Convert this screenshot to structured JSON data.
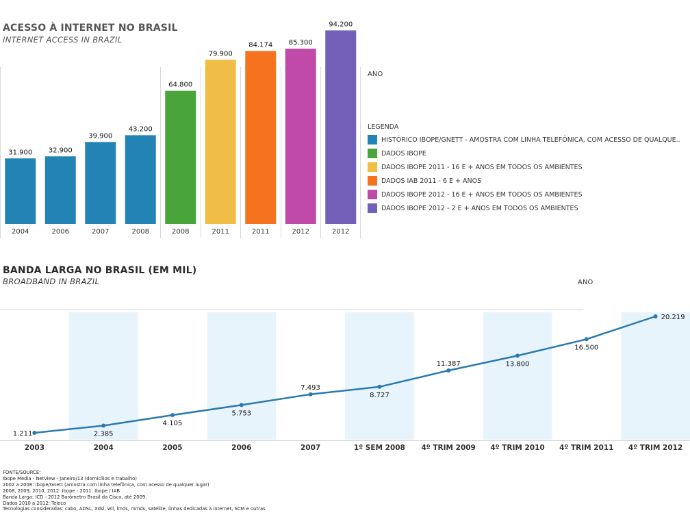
{
  "chart_data": [
    {
      "type": "bar",
      "title": "ACESSO À INTERNET NO BRASIL",
      "subtitle": "INTERNET ACCESS IN BRAZIL",
      "axis_title": "ANO",
      "categories": [
        "2004",
        "2006",
        "2007",
        "2008",
        "2008",
        "2011",
        "2011",
        "2012",
        "2012"
      ],
      "values": [
        31.9,
        32.9,
        39.9,
        43.2,
        64.8,
        79.9,
        84.174,
        85.3,
        94.2
      ],
      "value_labels": [
        "31.900",
        "32.900",
        "39.900",
        "43.200",
        "64.800",
        "79.900",
        "84.174",
        "85.300",
        "94.200"
      ],
      "series_index": [
        0,
        0,
        0,
        0,
        1,
        2,
        3,
        4,
        5
      ],
      "legend_title": "LEGENDA",
      "legend_placement": "right",
      "legend": [
        {
          "label": "HISTÓRICO IBOPE/GNETT - AMOSTRA COM LINHA TELEFÔNICA, COM ACESSO DE QUALQUE..",
          "color": "#2383b5"
        },
        {
          "label": "DADOS IBOPE",
          "color": "#49a43a"
        },
        {
          "label": "DADOS IBOPE 2011 - 16 E + ANOS EM TODOS OS AMBIENTES",
          "color": "#f0be46"
        },
        {
          "label": "DADOS IAB 2011 - 6 E + ANOS",
          "color": "#f5721e"
        },
        {
          "label": "DADOS IBOPE 2012 - 16 E + ANOS EM TODOS OS AMBIENTES",
          "color": "#bf4aa8"
        },
        {
          "label": "DADOS IBOPE 2012 - 2 E + ANOS EM TODOS OS AMBIENTES",
          "color": "#7360b8"
        }
      ],
      "ylim": [
        0,
        100
      ],
      "grid": false
    },
    {
      "type": "line",
      "title": "BANDA LARGA NO BRASIL (EM MIL)",
      "subtitle": "BROADBAND IN BRAZIL",
      "axis_title": "ANO",
      "categories": [
        "2003",
        "2004",
        "2005",
        "2006",
        "2007",
        "1º SEM 2008",
        "4º TRIM 2009",
        "4º TRIM 2010",
        "4º TRIM 2011",
        "4º TRIM 2012"
      ],
      "values": [
        1.211,
        2.385,
        4.105,
        5.753,
        7.493,
        8.727,
        11.387,
        13.8,
        16.5,
        20.219
      ],
      "value_labels": [
        "1.211",
        "2.385",
        "4.105",
        "5.753",
        "7.493",
        "8.727",
        "11.387",
        "13.800",
        "16.500",
        "20.219"
      ],
      "label_position": [
        "left",
        "below",
        "below",
        "below",
        "above",
        "below",
        "above",
        "below",
        "below",
        "right"
      ],
      "line_color": "#2a79b0",
      "band_color": "#e8f4fc",
      "ylim": [
        0,
        21
      ],
      "grid": false
    }
  ],
  "source": {
    "lines": [
      "FONTE/SOURCE:",
      "Ibope Media - NetView - Janeiro/13 (domicílios e trabalho)",
      "2002 a 2008: Ibope/Gnett (amostra com linha telefônica, com acesso de qualquer lugar)",
      "2008, 2009, 2010, 2012: Ibope - 2011: Ibope / IAB",
      "Banda Larga: ICD - 2012 Barômetro Brasil da Cisco, até 2009.",
      "Dados 2010 a 2012: Teleco",
      "Tecnologias consideradas: cabo, ADSL, Xdsl, wll, lmds, mmds, satélite, linhas dedicadas à internet, SCM e outras"
    ]
  }
}
